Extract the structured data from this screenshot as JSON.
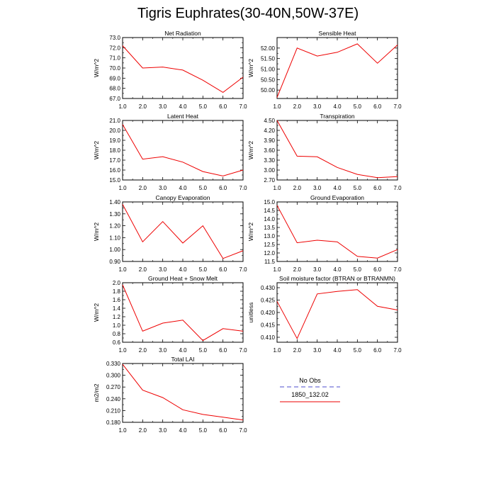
{
  "page_title": "Tigris Euphrates(30-40N,50W-37E)",
  "legend": {
    "entries": [
      {
        "label": "No Obs",
        "color": "#8888dd",
        "dash": true
      },
      {
        "label": "1850_132.02",
        "color": "#ee0000",
        "dash": false
      }
    ]
  },
  "chart_data": [
    {
      "type": "line",
      "title": "Net Radiation",
      "ylabel": "W/m^2",
      "x": [
        1,
        2,
        3,
        4,
        5,
        6,
        7
      ],
      "xlim": [
        1,
        7
      ],
      "xticks": [
        "1.0",
        "2.0",
        "3.0",
        "4.0",
        "5.0",
        "6.0",
        "7.0"
      ],
      "ylim": [
        67,
        73
      ],
      "yticks": [
        "67.0",
        "68.0",
        "69.0",
        "70.0",
        "71.0",
        "72.0",
        "73.0"
      ],
      "ytick_values": [
        67,
        68,
        69,
        70,
        71,
        72,
        73
      ],
      "series": [
        {
          "values": [
            72.2,
            70.0,
            70.1,
            69.8,
            68.8,
            67.6,
            69.1
          ],
          "color": "#ee0000"
        }
      ]
    },
    {
      "type": "line",
      "title": "Sensible Heat",
      "ylabel": "W/m^2",
      "x": [
        1,
        2,
        3,
        4,
        5,
        6,
        7
      ],
      "xlim": [
        1,
        7
      ],
      "xticks": [
        "1.0",
        "2.0",
        "3.0",
        "4.0",
        "5.0",
        "6.0",
        "7.0"
      ],
      "ylim": [
        49.6,
        52.5
      ],
      "yticks": [
        "50.00",
        "50.50",
        "51.00",
        "51.50",
        "52.00"
      ],
      "ytick_values": [
        50,
        50.5,
        51,
        51.5,
        52
      ],
      "series": [
        {
          "values": [
            49.65,
            52.0,
            51.62,
            51.8,
            52.2,
            51.28,
            52.15
          ],
          "color": "#ee0000"
        }
      ]
    },
    {
      "type": "line",
      "title": "Latent Heat",
      "ylabel": "W/m^2",
      "x": [
        1,
        2,
        3,
        4,
        5,
        6,
        7
      ],
      "xlim": [
        1,
        7
      ],
      "xticks": [
        "1.0",
        "2.0",
        "3.0",
        "4.0",
        "5.0",
        "6.0",
        "7.0"
      ],
      "ylim": [
        15,
        21
      ],
      "yticks": [
        "15.0",
        "16.0",
        "17.0",
        "18.0",
        "19.0",
        "20.0",
        "21.0"
      ],
      "ytick_values": [
        15,
        16,
        17,
        18,
        19,
        20,
        21
      ],
      "series": [
        {
          "values": [
            20.6,
            17.1,
            17.35,
            16.8,
            15.85,
            15.4,
            16.0
          ],
          "color": "#ee0000"
        }
      ]
    },
    {
      "type": "line",
      "title": "Transpiration",
      "ylabel": "W/m^2",
      "x": [
        1,
        2,
        3,
        4,
        5,
        6,
        7
      ],
      "xlim": [
        1,
        7
      ],
      "xticks": [
        "1.0",
        "2.0",
        "3.0",
        "4.0",
        "5.0",
        "6.0",
        "7.0"
      ],
      "ylim": [
        2.7,
        4.5
      ],
      "yticks": [
        "2.70",
        "3.00",
        "3.30",
        "3.60",
        "3.90",
        "4.20",
        "4.50"
      ],
      "ytick_values": [
        2.7,
        3.0,
        3.3,
        3.6,
        3.9,
        4.2,
        4.5
      ],
      "series": [
        {
          "values": [
            4.5,
            3.42,
            3.4,
            3.08,
            2.87,
            2.77,
            2.8
          ],
          "color": "#ee0000"
        }
      ]
    },
    {
      "type": "line",
      "title": "Canopy Evaporation",
      "ylabel": "W/m^2",
      "x": [
        1,
        2,
        3,
        4,
        5,
        6,
        7
      ],
      "xlim": [
        1,
        7
      ],
      "xticks": [
        "1.0",
        "2.0",
        "3.0",
        "4.0",
        "5.0",
        "6.0",
        "7.0"
      ],
      "ylim": [
        0.9,
        1.4
      ],
      "yticks": [
        "0.90",
        "1.00",
        "1.10",
        "1.20",
        "1.30",
        "1.40"
      ],
      "ytick_values": [
        0.9,
        1.0,
        1.1,
        1.2,
        1.3,
        1.4
      ],
      "series": [
        {
          "values": [
            1.38,
            1.065,
            1.235,
            1.055,
            1.2,
            0.925,
            0.99
          ],
          "color": "#ee0000"
        }
      ]
    },
    {
      "type": "line",
      "title": "Ground Evaporation",
      "ylabel": "W/m^2",
      "x": [
        1,
        2,
        3,
        4,
        5,
        6,
        7
      ],
      "xlim": [
        1,
        7
      ],
      "xticks": [
        "1.0",
        "2.0",
        "3.0",
        "4.0",
        "5.0",
        "6.0",
        "7.0"
      ],
      "ylim": [
        11.5,
        15.0
      ],
      "yticks": [
        "11.5",
        "12.0",
        "12.5",
        "13.0",
        "13.5",
        "14.0",
        "14.5",
        "15.0"
      ],
      "ytick_values": [
        11.5,
        12,
        12.5,
        13,
        13.5,
        14,
        14.5,
        15
      ],
      "series": [
        {
          "values": [
            14.8,
            12.6,
            12.75,
            12.65,
            11.8,
            11.7,
            12.2
          ],
          "color": "#ee0000"
        }
      ]
    },
    {
      "type": "line",
      "title": "Ground Heat + Snow Melt",
      "ylabel": "W/m^2",
      "x": [
        1,
        2,
        3,
        4,
        5,
        6,
        7
      ],
      "xlim": [
        1,
        7
      ],
      "xticks": [
        "1.0",
        "2.0",
        "3.0",
        "4.0",
        "5.0",
        "6.0",
        "7.0"
      ],
      "ylim": [
        0.6,
        2.0
      ],
      "yticks": [
        "0.6",
        "0.8",
        "1.0",
        "1.2",
        "1.4",
        "1.6",
        "1.8",
        "2.0"
      ],
      "ytick_values": [
        0.6,
        0.8,
        1.0,
        1.2,
        1.4,
        1.6,
        1.8,
        2.0
      ],
      "series": [
        {
          "values": [
            1.95,
            0.86,
            1.05,
            1.12,
            0.64,
            0.92,
            0.86
          ],
          "color": "#ee0000"
        }
      ]
    },
    {
      "type": "line",
      "title": "Soil moisture factor (BTRAN or BTRANMN)",
      "ylabel": "unitless",
      "x": [
        1,
        2,
        3,
        4,
        5,
        6,
        7
      ],
      "xlim": [
        1,
        7
      ],
      "xticks": [
        "1.0",
        "2.0",
        "3.0",
        "4.0",
        "5.0",
        "6.0",
        "7.0"
      ],
      "ylim": [
        0.408,
        0.432
      ],
      "yticks": [
        "0.410",
        "0.415",
        "0.420",
        "0.425",
        "0.430"
      ],
      "ytick_values": [
        0.41,
        0.415,
        0.42,
        0.425,
        0.43
      ],
      "series": [
        {
          "values": [
            0.4245,
            0.4095,
            0.4275,
            0.4285,
            0.4292,
            0.4225,
            0.421
          ],
          "color": "#ee0000"
        }
      ]
    },
    {
      "type": "line",
      "title": "Total LAI",
      "ylabel": "m2/m2",
      "x": [
        1,
        2,
        3,
        4,
        5,
        6,
        7
      ],
      "xlim": [
        1,
        7
      ],
      "xticks": [
        "1.0",
        "2.0",
        "3.0",
        "4.0",
        "5.0",
        "6.0",
        "7.0"
      ],
      "ylim": [
        0.18,
        0.33
      ],
      "yticks": [
        "0.180",
        "0.210",
        "0.240",
        "0.270",
        "0.300",
        "0.330"
      ],
      "ytick_values": [
        0.18,
        0.21,
        0.24,
        0.27,
        0.3,
        0.33
      ],
      "series": [
        {
          "values": [
            0.328,
            0.262,
            0.243,
            0.212,
            0.2,
            0.193,
            0.186
          ],
          "color": "#ee0000"
        }
      ]
    }
  ]
}
